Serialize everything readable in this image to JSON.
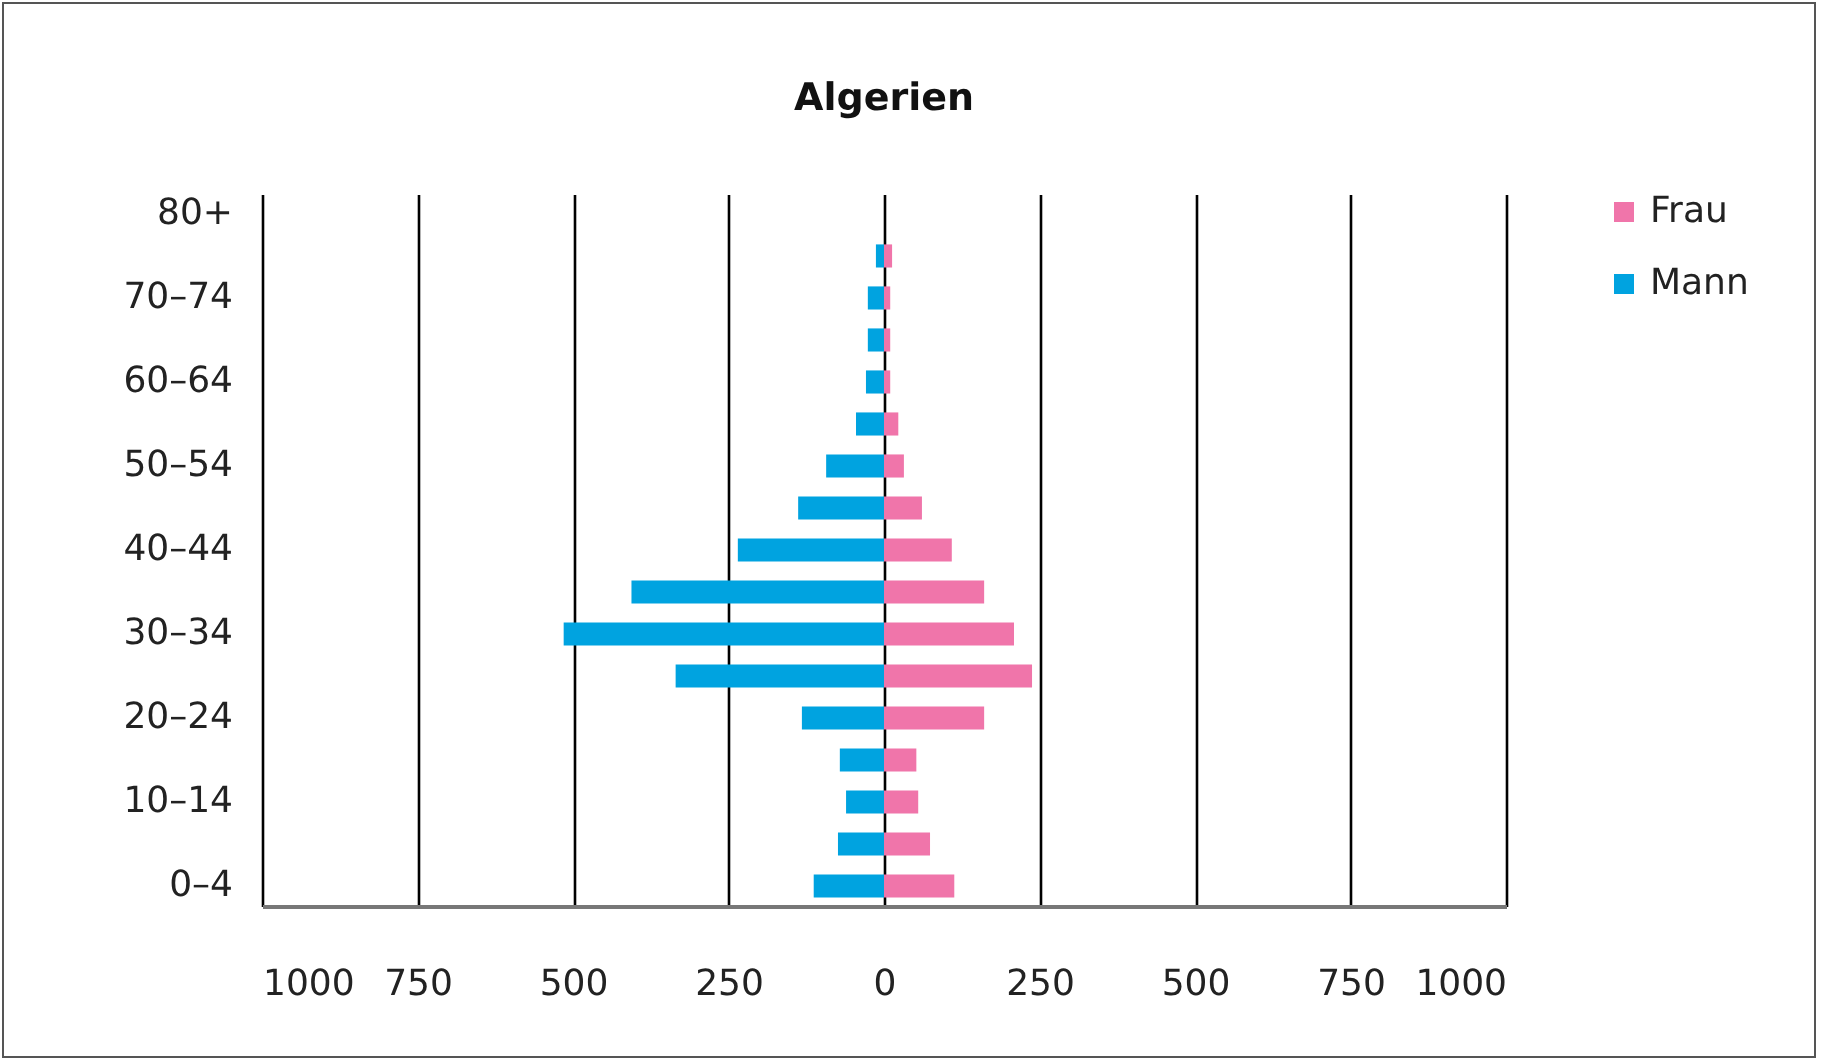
{
  "chart_data": {
    "type": "bar",
    "orientation": "horizontal",
    "stacked": true,
    "title": "Algerien",
    "categories": [
      "80+",
      null,
      "70–74",
      null,
      "60–64",
      null,
      "50–54",
      null,
      "40–44",
      null,
      "30–34",
      null,
      "20–24",
      null,
      "10–14",
      null,
      "0–4"
    ],
    "series": [
      {
        "name": "Frau",
        "color": "#f075aa",
        "values": [
          null,
          13,
          10,
          10,
          10,
          23,
          32,
          61,
          109,
          161,
          209,
          238,
          161,
          52,
          55,
          74,
          113
        ]
      },
      {
        "name": "Mann",
        "color": "#00a3e0",
        "values": [
          null,
          -13,
          -26,
          -26,
          -29,
          -45,
          -93,
          -138,
          -235,
          -406,
          -515,
          -335,
          -132,
          -71,
          -61,
          -74,
          -113
        ]
      }
    ],
    "xlim": [
      -1000,
      1000
    ],
    "xticks": [
      {
        "value": -1000,
        "label": "1000"
      },
      {
        "value": -750,
        "label": "750"
      },
      {
        "value": -500,
        "label": "500"
      },
      {
        "value": -250,
        "label": "250"
      },
      0,
      250,
      500,
      750,
      1000
    ],
    "grid": "x",
    "legend": "right"
  }
}
